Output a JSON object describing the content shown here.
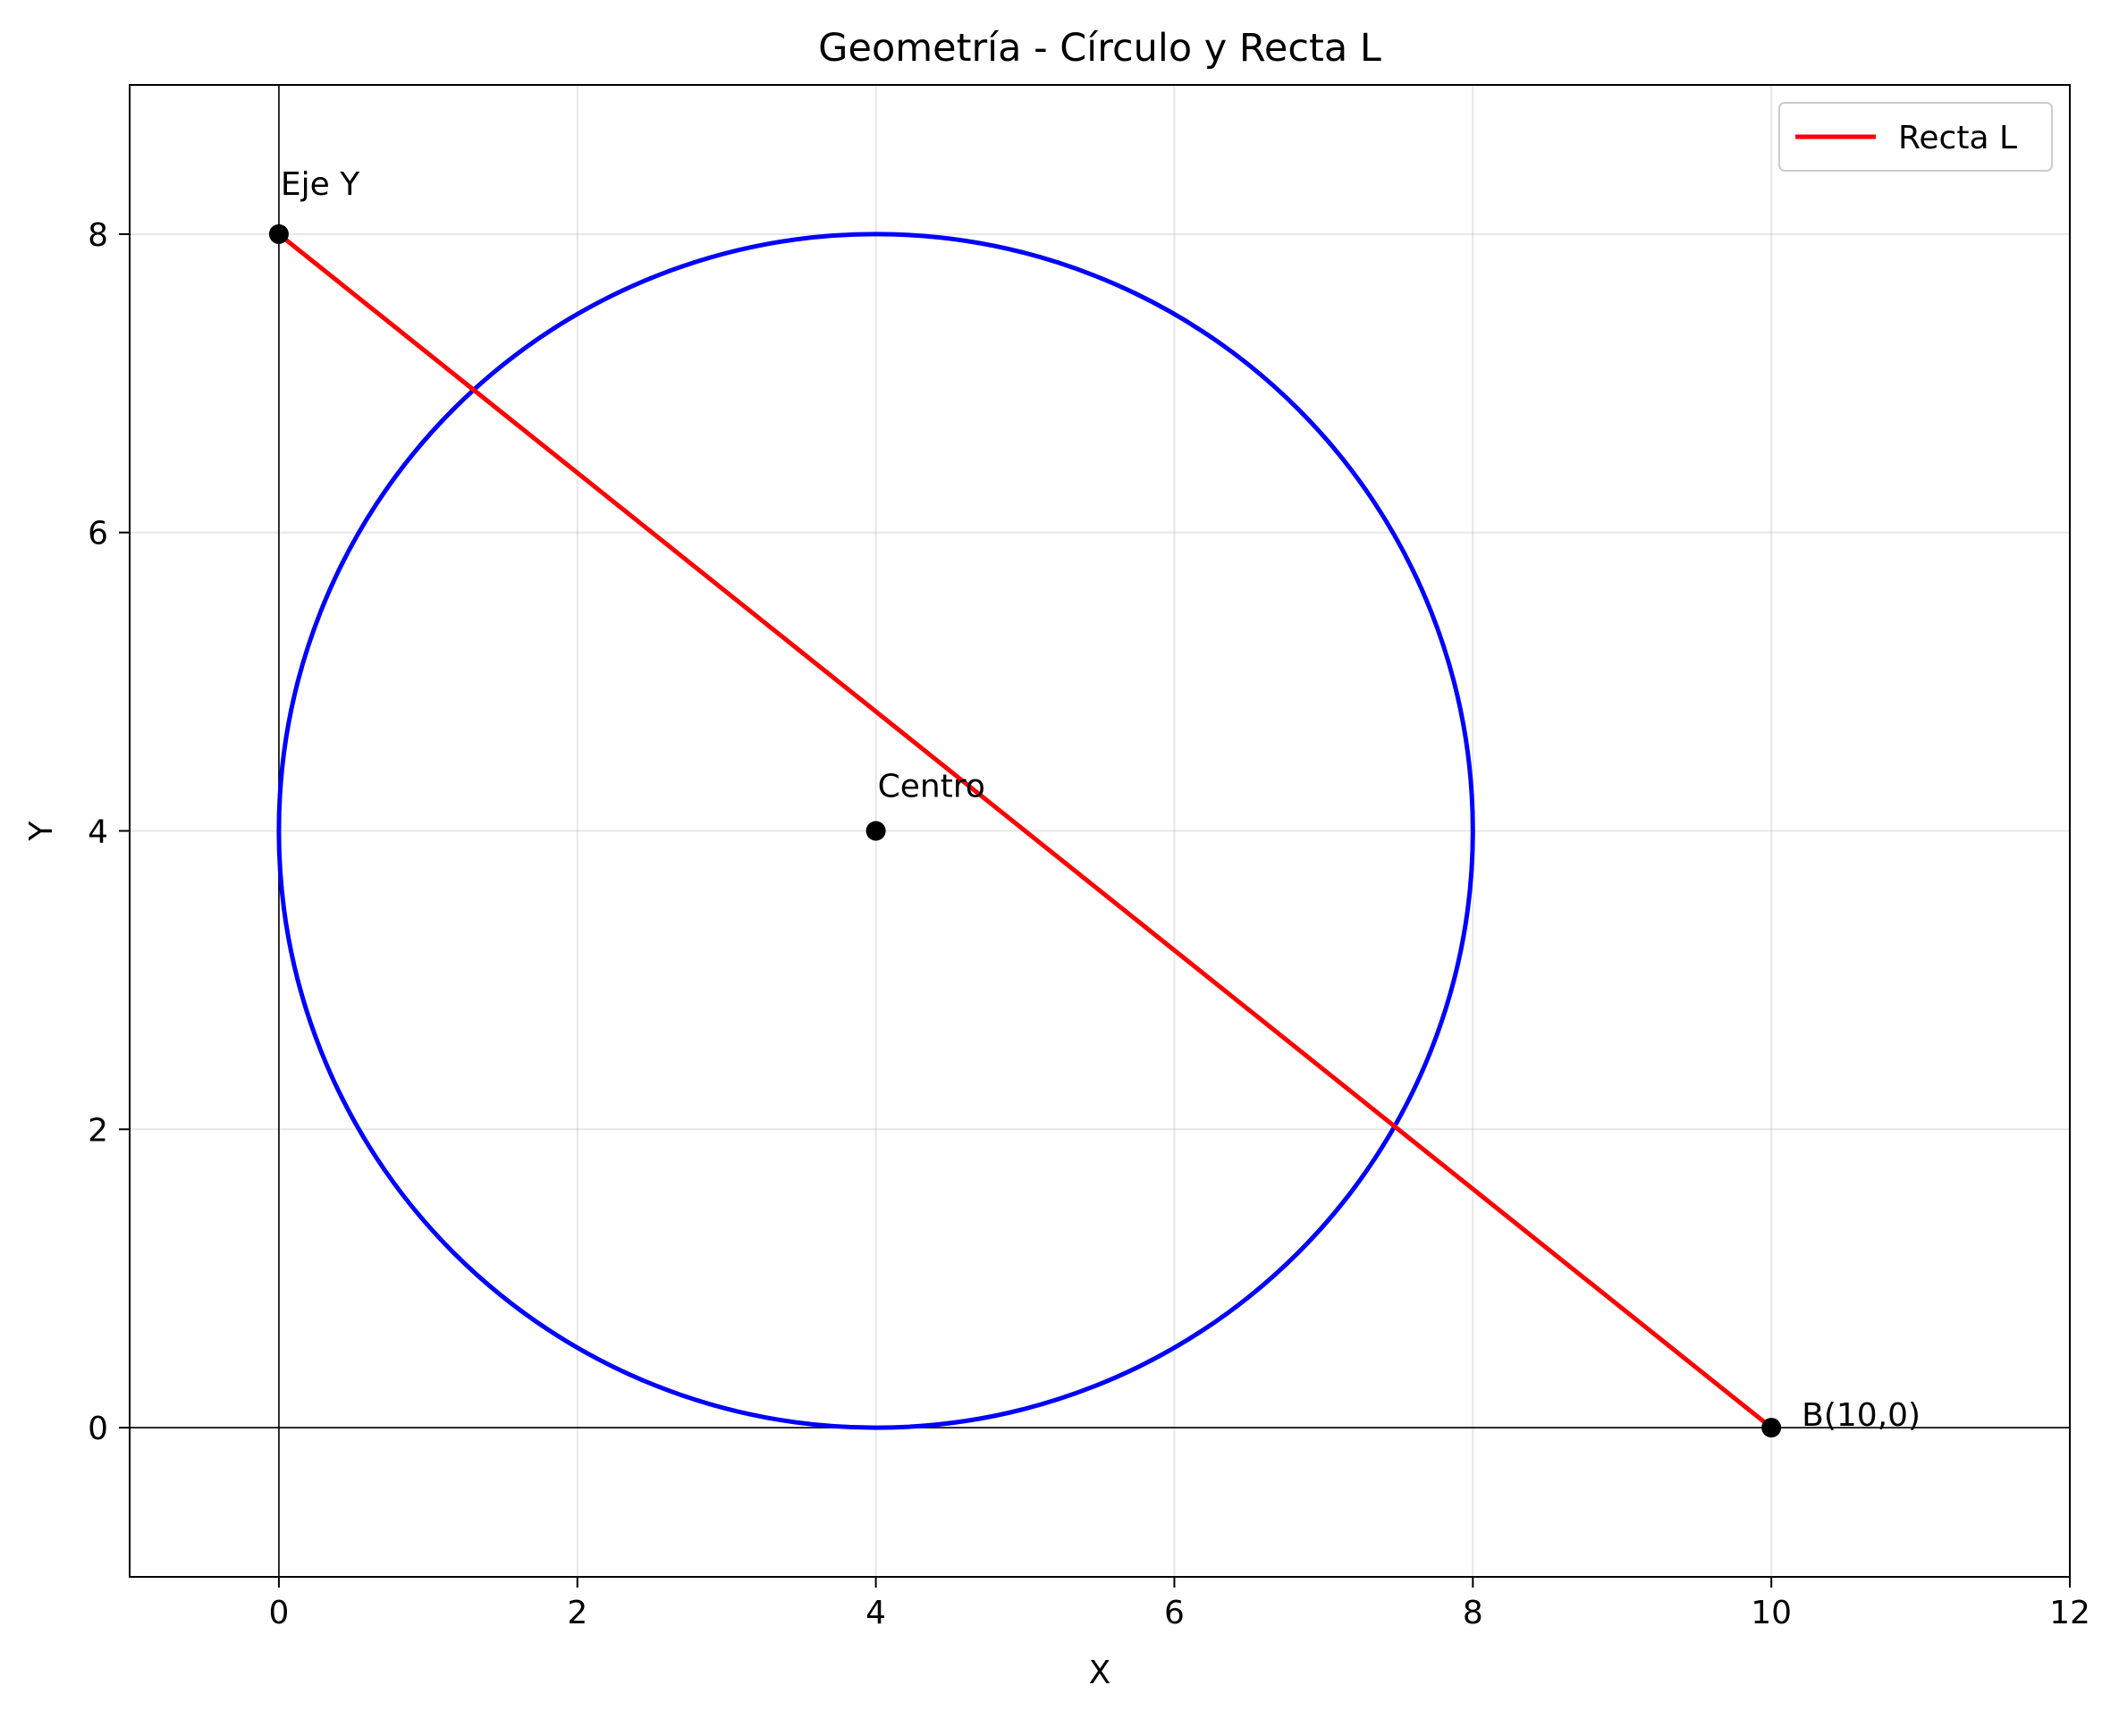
{
  "chart_data": {
    "type": "line",
    "title": "Geometría - Círculo y Recta L",
    "xlabel": "X",
    "ylabel": "Y",
    "xlim": [
      -1,
      12
    ],
    "ylim": [
      -1,
      9
    ],
    "xticks": [
      0,
      2,
      4,
      6,
      8,
      10,
      12
    ],
    "yticks": [
      0,
      2,
      4,
      6,
      8
    ],
    "grid": true,
    "legend_position": "top-right",
    "series": [
      {
        "name": "Recta L",
        "color": "#ff0000",
        "x": [
          0,
          10
        ],
        "y": [
          8,
          0
        ]
      }
    ],
    "circle": {
      "center": [
        4,
        4
      ],
      "radius": 4,
      "color": "#0000ff"
    },
    "reference_lines": {
      "x": 0,
      "y": 0
    },
    "points": [
      {
        "x": 0,
        "y": 8,
        "label": "Eje Y"
      },
      {
        "x": 4,
        "y": 4,
        "label": "Centro"
      },
      {
        "x": 10,
        "y": 0,
        "label": "B(10,0)"
      }
    ]
  }
}
